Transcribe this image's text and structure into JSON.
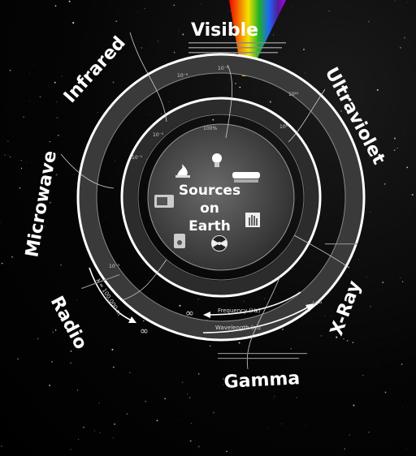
{
  "title": "Sources on Earth",
  "center": {
    "line1": "Sources",
    "line2": "on",
    "line3": "Earth"
  },
  "bands": [
    {
      "id": "visible",
      "label": "Visible"
    },
    {
      "id": "ultraviolet",
      "label": "Ultraviolet"
    },
    {
      "id": "xray",
      "label": "X-Ray"
    },
    {
      "id": "gamma",
      "label": "Gamma"
    },
    {
      "id": "radio",
      "label": "Radio"
    },
    {
      "id": "microwave",
      "label": "Microwave"
    },
    {
      "id": "infrared",
      "label": "Infrared"
    }
  ],
  "axis": {
    "frequency_label": "Frequency (Hz)",
    "wavelength_label": "Wavelength (m)",
    "radio_wavelength": "λ = 100,000 m",
    "infinity": "∞"
  },
  "ticks": {
    "outer": [
      "10⁻⁸",
      "10⁻⁹",
      "10¹⁰",
      "10¹⁴"
    ],
    "inner": [
      "100%",
      "10⁻⁵",
      "10⁻¹",
      "10⁻³",
      "10¹"
    ]
  },
  "sources": [
    {
      "id": "campfire",
      "icon": "campfire-icon"
    },
    {
      "id": "lightbulb",
      "icon": "lightbulb-icon"
    },
    {
      "id": "microwave-oven",
      "icon": "microwave-oven-icon"
    },
    {
      "id": "tanning-bed",
      "icon": "tanning-bed-icon"
    },
    {
      "id": "radio-set",
      "icon": "radio-icon"
    },
    {
      "id": "radiation",
      "icon": "radiation-icon"
    },
    {
      "id": "xray-hand",
      "icon": "xray-hand-icon"
    }
  ],
  "colors": {
    "band_ring": "#3a3a3a",
    "core": "#4a4a4a",
    "line": "#ffffff",
    "spectrum": [
      "#ff0000",
      "#ff7f00",
      "#ffff00",
      "#00c000",
      "#0070ff",
      "#4b0082",
      "#8f00ff"
    ]
  }
}
